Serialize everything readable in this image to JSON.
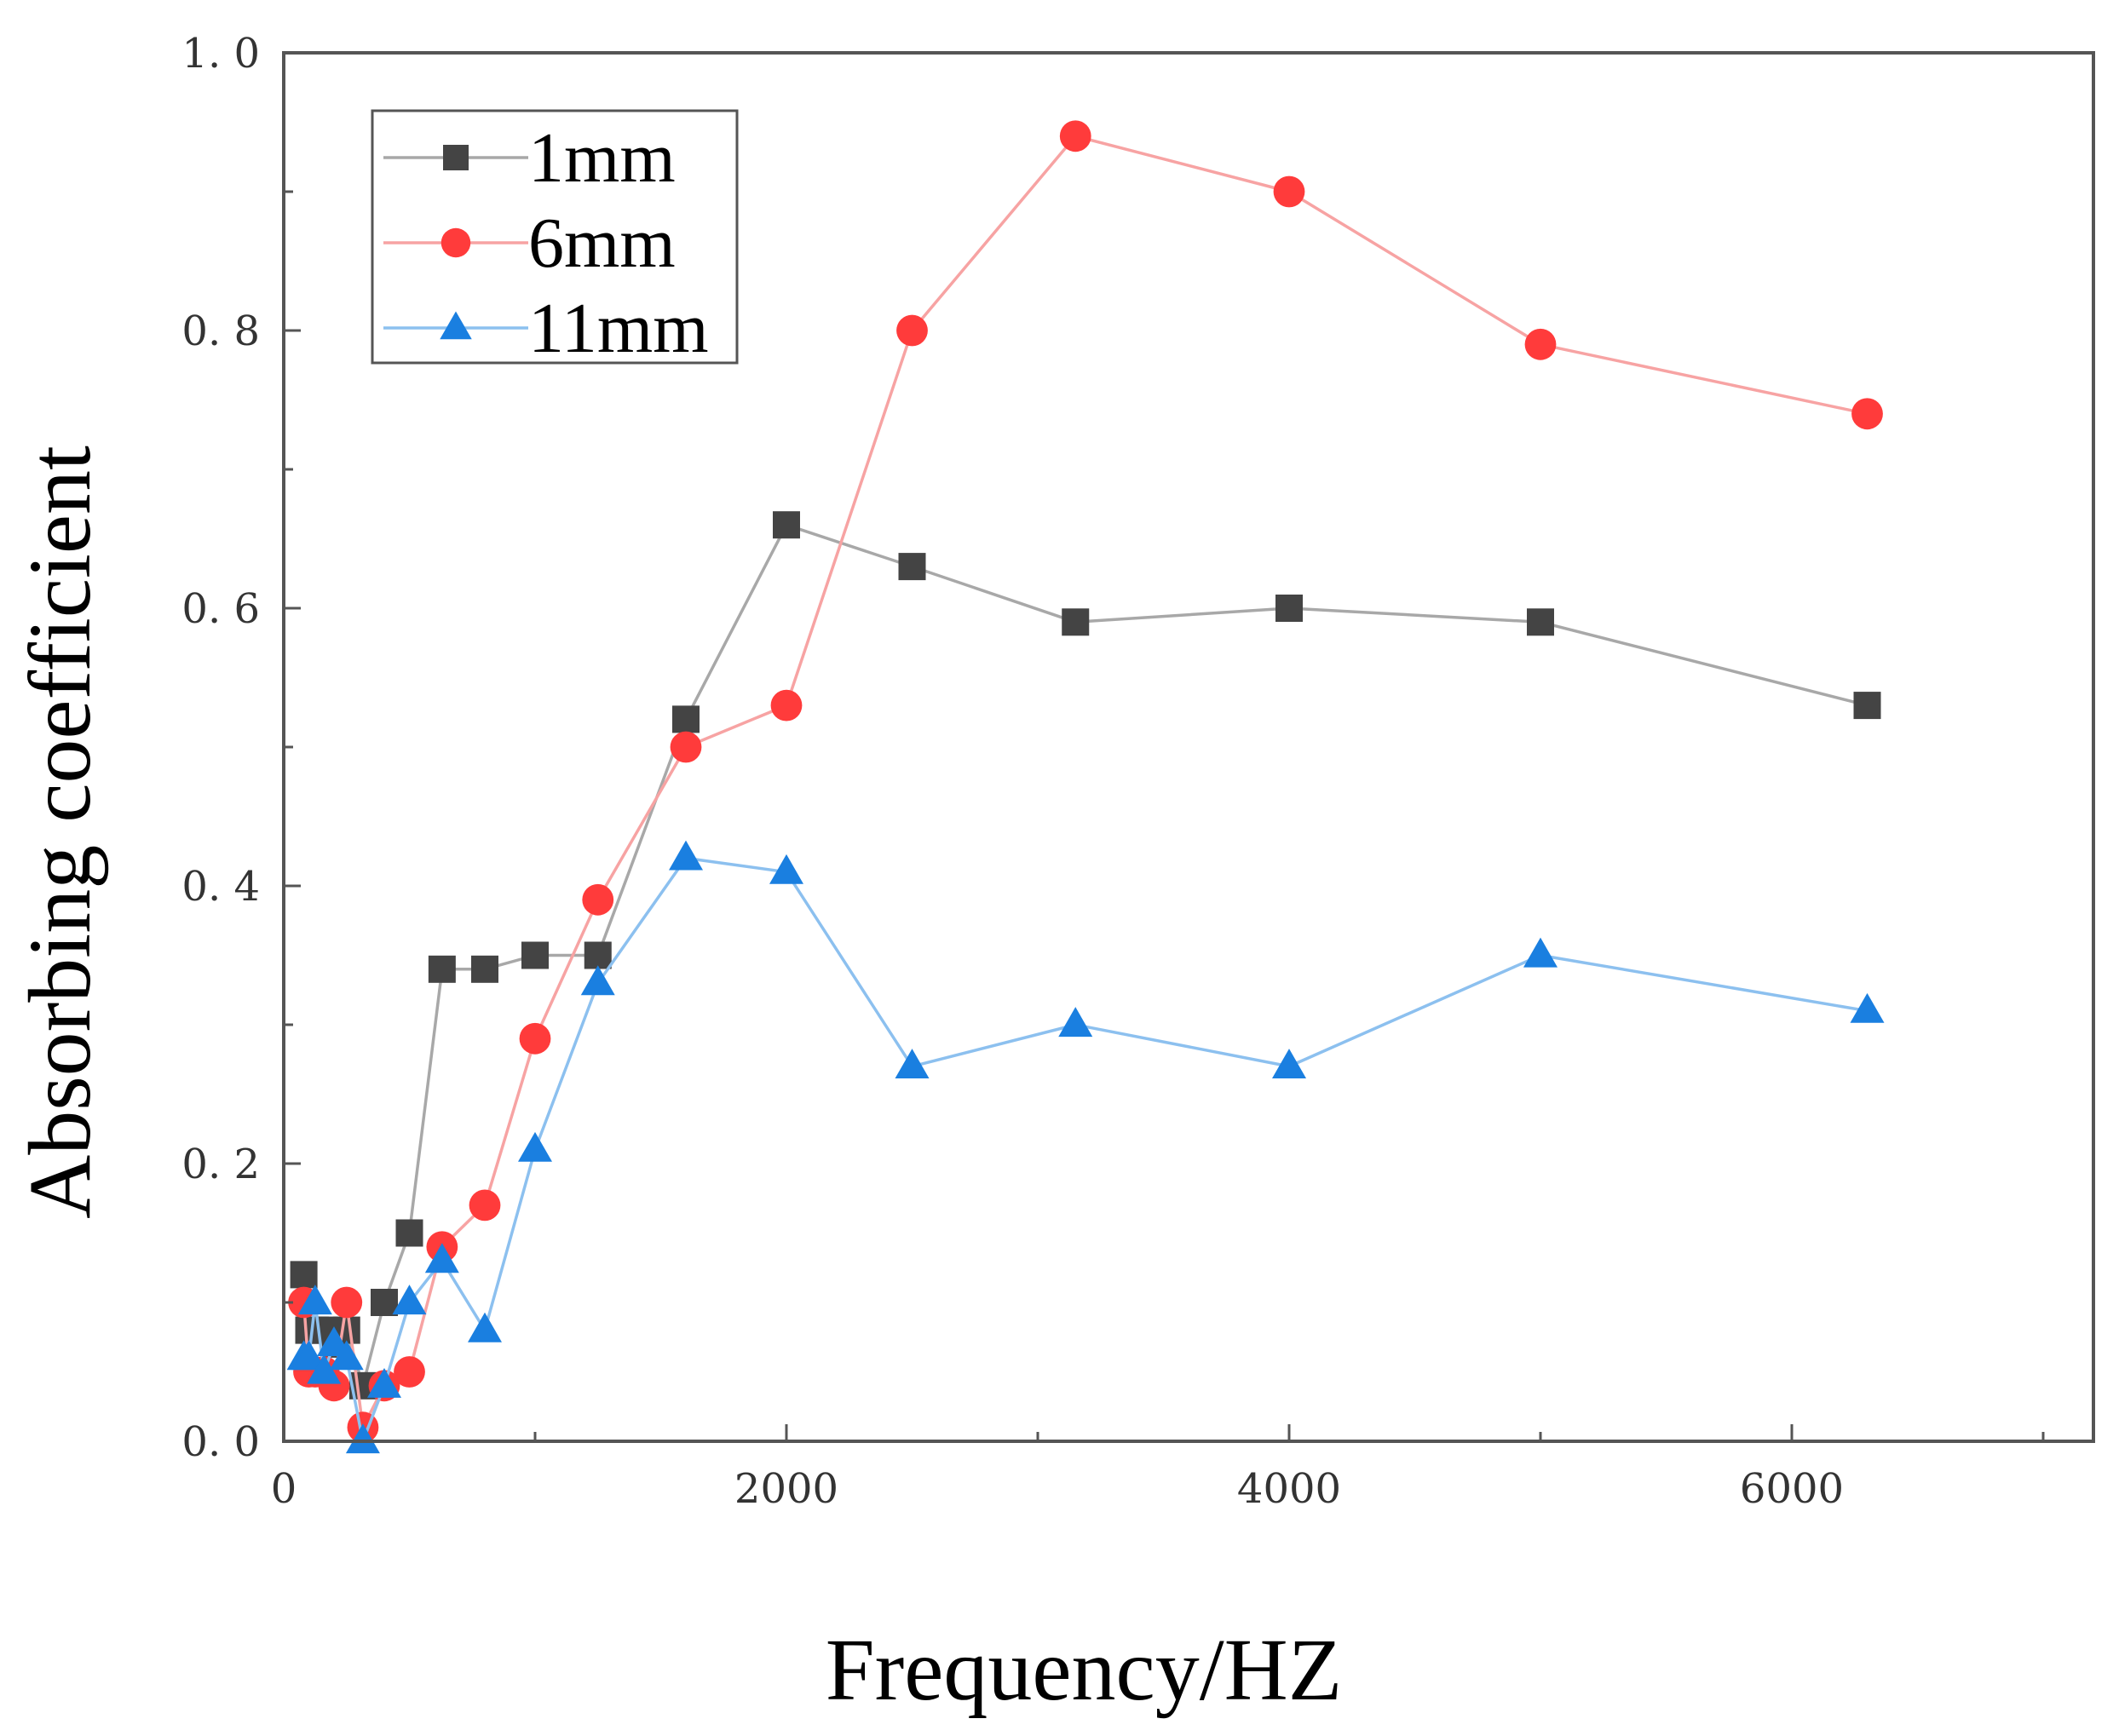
{
  "chart_data": {
    "type": "line",
    "title": "",
    "xlabel": "Frequency/HZ",
    "ylabel": "Absorbing coefficient",
    "xlim": [
      0,
      7200
    ],
    "ylim": [
      0.0,
      1.0
    ],
    "xticks": [
      0,
      2000,
      4000,
      6000
    ],
    "xtick_labels": [
      "0",
      "2000",
      "4000",
      "6000"
    ],
    "yticks": [
      0.0,
      0.2,
      0.4,
      0.6,
      0.8,
      1.0
    ],
    "ytick_labels": [
      "0. 0",
      "0. 2",
      "0. 4",
      "0. 6",
      "0. 8",
      "1. 0"
    ],
    "grid": false,
    "legend_position": "top-left",
    "series": [
      {
        "name": "1mm",
        "color": "#444444",
        "line_color": "#a8a8a8",
        "marker": "square",
        "x": [
          80,
          100,
          125,
          160,
          200,
          250,
          315,
          400,
          500,
          630,
          800,
          1000,
          1250,
          1600,
          2000,
          2500,
          3150,
          4000,
          5000,
          6300
        ],
        "y": [
          0.12,
          0.08,
          0.08,
          0.08,
          0.07,
          0.08,
          0.04,
          0.1,
          0.15,
          0.34,
          0.34,
          0.35,
          0.35,
          0.52,
          0.66,
          0.63,
          0.59,
          0.6,
          0.59,
          0.53
        ]
      },
      {
        "name": "6mm",
        "color": "#ff3b3b",
        "line_color": "#f7a3a3",
        "marker": "circle",
        "x": [
          80,
          100,
          125,
          160,
          200,
          250,
          315,
          400,
          500,
          630,
          800,
          1000,
          1250,
          1600,
          2000,
          2500,
          3150,
          4000,
          5000,
          6300
        ],
        "y": [
          0.1,
          0.05,
          0.05,
          0.05,
          0.04,
          0.1,
          0.01,
          0.04,
          0.05,
          0.14,
          0.17,
          0.29,
          0.39,
          0.5,
          0.53,
          0.8,
          0.94,
          0.9,
          0.79,
          0.74
        ]
      },
      {
        "name": "11mm",
        "color": "#1a7fe0",
        "line_color": "#8cc0ef",
        "marker": "triangle",
        "x": [
          80,
          100,
          125,
          160,
          200,
          250,
          315,
          400,
          500,
          630,
          800,
          1000,
          1250,
          1600,
          2000,
          2500,
          3150,
          4000,
          5000,
          6300
        ],
        "y": [
          0.06,
          0.06,
          0.1,
          0.05,
          0.07,
          0.06,
          0.0,
          0.04,
          0.1,
          0.13,
          0.08,
          0.21,
          0.33,
          0.42,
          0.41,
          0.27,
          0.3,
          0.27,
          0.35,
          0.31
        ]
      }
    ]
  }
}
